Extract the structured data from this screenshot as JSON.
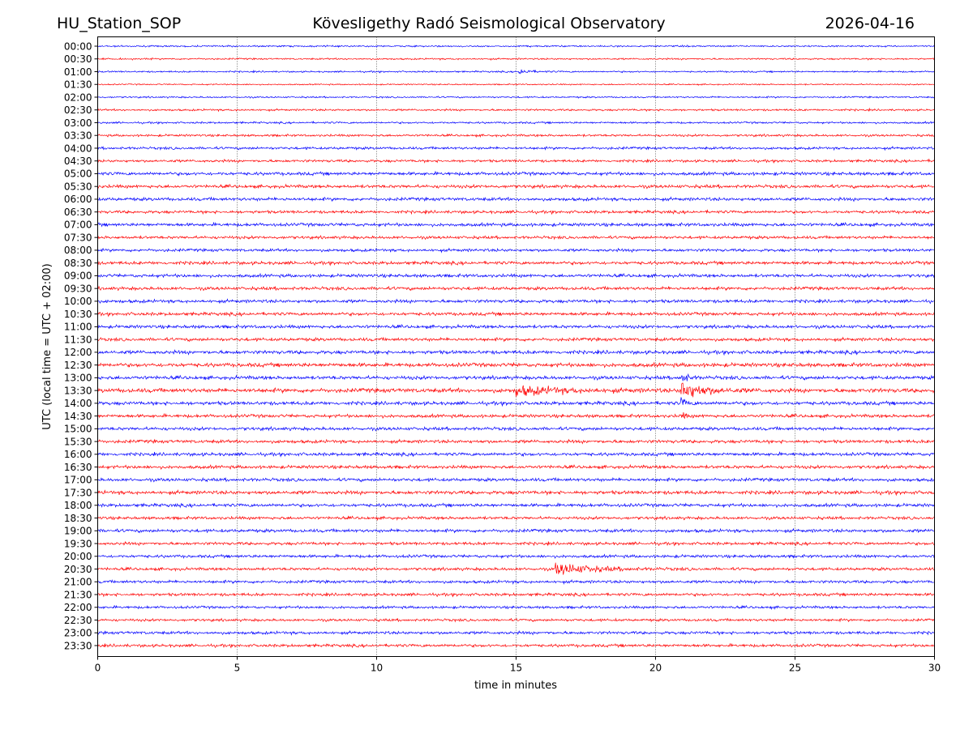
{
  "header": {
    "station": "HU_Station_SOP",
    "observatory": "Kövesligethy Radó Seismological Observatory",
    "date": "2026-04-16"
  },
  "chart_data": {
    "type": "line",
    "title": "Kövesligethy Radó Seismological Observatory",
    "xlabel": "time in minutes",
    "ylabel": "UTC (local time = UTC + 02:00)",
    "xlim": [
      0,
      30
    ],
    "x_ticks": [
      "0",
      "5",
      "10",
      "15",
      "20",
      "25",
      "30"
    ],
    "x_tick_values": [
      0,
      5,
      10,
      15,
      20,
      25,
      30
    ],
    "grid": "vertical dotted",
    "colors": [
      "#0000ff",
      "#ff0000"
    ],
    "rows": [
      {
        "label": "00:00",
        "color": "#0000ff",
        "noise": 0.5
      },
      {
        "label": "00:30",
        "color": "#ff0000",
        "noise": 0.5
      },
      {
        "label": "01:00",
        "color": "#0000ff",
        "noise": 0.5,
        "events": [
          {
            "t": 15.1,
            "amp": 1.5,
            "dur": 0.8
          }
        ]
      },
      {
        "label": "01:30",
        "color": "#ff0000",
        "noise": 0.4
      },
      {
        "label": "02:00",
        "color": "#0000ff",
        "noise": 0.5
      },
      {
        "label": "02:30",
        "color": "#ff0000",
        "noise": 0.6
      },
      {
        "label": "03:00",
        "color": "#0000ff",
        "noise": 0.6
      },
      {
        "label": "03:30",
        "color": "#ff0000",
        "noise": 0.7
      },
      {
        "label": "04:00",
        "color": "#0000ff",
        "noise": 0.8
      },
      {
        "label": "04:30",
        "color": "#ff0000",
        "noise": 0.8
      },
      {
        "label": "05:00",
        "color": "#0000ff",
        "noise": 1.0
      },
      {
        "label": "05:30",
        "color": "#ff0000",
        "noise": 1.0
      },
      {
        "label": "06:00",
        "color": "#0000ff",
        "noise": 1.0
      },
      {
        "label": "06:30",
        "color": "#ff0000",
        "noise": 0.9
      },
      {
        "label": "07:00",
        "color": "#0000ff",
        "noise": 1.0
      },
      {
        "label": "07:30",
        "color": "#ff0000",
        "noise": 0.9
      },
      {
        "label": "08:00",
        "color": "#0000ff",
        "noise": 0.9
      },
      {
        "label": "08:30",
        "color": "#ff0000",
        "noise": 1.0
      },
      {
        "label": "09:00",
        "color": "#0000ff",
        "noise": 1.0
      },
      {
        "label": "09:30",
        "color": "#ff0000",
        "noise": 1.0
      },
      {
        "label": "10:00",
        "color": "#0000ff",
        "noise": 1.0
      },
      {
        "label": "10:30",
        "color": "#ff0000",
        "noise": 1.0
      },
      {
        "label": "11:00",
        "color": "#0000ff",
        "noise": 1.0
      },
      {
        "label": "11:30",
        "color": "#ff0000",
        "noise": 1.0
      },
      {
        "label": "12:00",
        "color": "#0000ff",
        "noise": 1.1
      },
      {
        "label": "12:30",
        "color": "#ff0000",
        "noise": 1.2
      },
      {
        "label": "13:00",
        "color": "#0000ff",
        "noise": 1.1,
        "events": [
          {
            "t": 20.9,
            "amp": 4.0,
            "dur": 0.4
          }
        ]
      },
      {
        "label": "13:30",
        "color": "#ff0000",
        "noise": 1.3,
        "events": [
          {
            "t": 15.0,
            "amp": 2.2,
            "dur": 3.0
          },
          {
            "t": 20.9,
            "amp": 5.0,
            "dur": 1.5
          }
        ]
      },
      {
        "label": "14:00",
        "color": "#0000ff",
        "noise": 1.1,
        "events": [
          {
            "t": 20.9,
            "amp": 2.5,
            "dur": 0.4
          }
        ]
      },
      {
        "label": "14:30",
        "color": "#ff0000",
        "noise": 1.0,
        "events": [
          {
            "t": 20.9,
            "amp": 2.0,
            "dur": 0.3
          }
        ]
      },
      {
        "label": "15:00",
        "color": "#0000ff",
        "noise": 1.0
      },
      {
        "label": "15:30",
        "color": "#ff0000",
        "noise": 1.0
      },
      {
        "label": "16:00",
        "color": "#0000ff",
        "noise": 1.0
      },
      {
        "label": "16:30",
        "color": "#ff0000",
        "noise": 1.0
      },
      {
        "label": "17:00",
        "color": "#0000ff",
        "noise": 1.0
      },
      {
        "label": "17:30",
        "color": "#ff0000",
        "noise": 1.1
      },
      {
        "label": "18:00",
        "color": "#0000ff",
        "noise": 1.0
      },
      {
        "label": "18:30",
        "color": "#ff0000",
        "noise": 0.9
      },
      {
        "label": "19:00",
        "color": "#0000ff",
        "noise": 1.0
      },
      {
        "label": "19:30",
        "color": "#ff0000",
        "noise": 0.9
      },
      {
        "label": "20:00",
        "color": "#0000ff",
        "noise": 0.9
      },
      {
        "label": "20:30",
        "color": "#ff0000",
        "noise": 0.9,
        "events": [
          {
            "t": 16.4,
            "amp": 3.0,
            "dur": 2.5
          }
        ]
      },
      {
        "label": "21:00",
        "color": "#0000ff",
        "noise": 0.9
      },
      {
        "label": "21:30",
        "color": "#ff0000",
        "noise": 0.9
      },
      {
        "label": "22:00",
        "color": "#0000ff",
        "noise": 0.8
      },
      {
        "label": "22:30",
        "color": "#ff0000",
        "noise": 0.8
      },
      {
        "label": "23:00",
        "color": "#0000ff",
        "noise": 0.9
      },
      {
        "label": "23:30",
        "color": "#ff0000",
        "noise": 0.9
      }
    ]
  }
}
